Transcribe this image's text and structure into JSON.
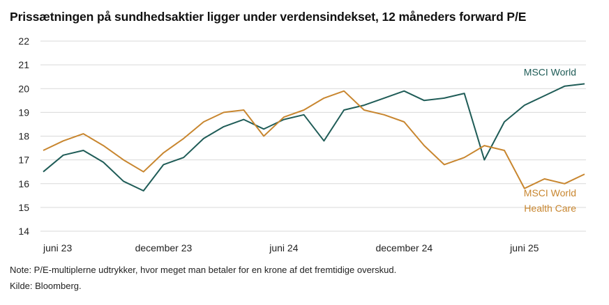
{
  "title": "Prissætningen på sundhedsaktier ligger under verdensindekset, 12 måneders forward P/E",
  "note": "Note: P/E-multiplerne udtrykker, hvor meget man betaler for en krone af det fremtidige overskud.",
  "source": "Kilde: Bloomberg.",
  "colors": {
    "msci_world": "#1f5c57",
    "health_care": "#c8862f",
    "grid": "#d9d9d9"
  },
  "chart_data": {
    "type": "line",
    "title": "Prissætningen på sundhedsaktier ligger under verdensindekset, 12 måneders forward P/E",
    "xlabel": "",
    "ylabel": "",
    "ylim": [
      14,
      22
    ],
    "yticks": [
      14,
      15,
      16,
      17,
      18,
      19,
      20,
      21,
      22
    ],
    "xlim": [
      "2023-06",
      "2025-09"
    ],
    "xticks": [
      {
        "label": "juni 23",
        "x": "2023-06"
      },
      {
        "label": "december 23",
        "x": "2023-12"
      },
      {
        "label": "juni 24",
        "x": "2024-06"
      },
      {
        "label": "december 24",
        "x": "2024-12"
      },
      {
        "label": "juni 25",
        "x": "2025-06"
      }
    ],
    "grid": true,
    "series": [
      {
        "name": "MSCI World",
        "label_lines": [
          "MSCI World"
        ],
        "points": [
          [
            "2023-06",
            16.5
          ],
          [
            "2023-07",
            17.2
          ],
          [
            "2023-08",
            17.4
          ],
          [
            "2023-09",
            16.9
          ],
          [
            "2023-10",
            16.1
          ],
          [
            "2023-11",
            15.7
          ],
          [
            "2023-12",
            16.8
          ],
          [
            "2024-01",
            17.1
          ],
          [
            "2024-02",
            17.9
          ],
          [
            "2024-03",
            18.4
          ],
          [
            "2024-04",
            18.7
          ],
          [
            "2024-05",
            18.3
          ],
          [
            "2024-06",
            18.7
          ],
          [
            "2024-07",
            18.9
          ],
          [
            "2024-08",
            17.8
          ],
          [
            "2024-09",
            19.1
          ],
          [
            "2024-10",
            19.3
          ],
          [
            "2024-11",
            19.6
          ],
          [
            "2024-12",
            19.9
          ],
          [
            "2025-01",
            19.5
          ],
          [
            "2025-02",
            19.6
          ],
          [
            "2025-03",
            19.8
          ],
          [
            "2025-04",
            17.0
          ],
          [
            "2025-05",
            18.6
          ],
          [
            "2025-06",
            19.3
          ],
          [
            "2025-07",
            19.7
          ],
          [
            "2025-08",
            20.1
          ],
          [
            "2025-09",
            20.2
          ]
        ]
      },
      {
        "name": "MSCI World Health Care",
        "label_lines": [
          "MSCI World",
          "Health Care"
        ],
        "points": [
          [
            "2023-06",
            17.4
          ],
          [
            "2023-07",
            17.8
          ],
          [
            "2023-08",
            18.1
          ],
          [
            "2023-09",
            17.6
          ],
          [
            "2023-10",
            17.0
          ],
          [
            "2023-11",
            16.5
          ],
          [
            "2023-12",
            17.3
          ],
          [
            "2024-01",
            17.9
          ],
          [
            "2024-02",
            18.6
          ],
          [
            "2024-03",
            19.0
          ],
          [
            "2024-04",
            19.1
          ],
          [
            "2024-05",
            18.0
          ],
          [
            "2024-06",
            18.8
          ],
          [
            "2024-07",
            19.1
          ],
          [
            "2024-08",
            19.6
          ],
          [
            "2024-09",
            19.9
          ],
          [
            "2024-10",
            19.1
          ],
          [
            "2024-11",
            18.9
          ],
          [
            "2024-12",
            18.6
          ],
          [
            "2025-01",
            17.6
          ],
          [
            "2025-02",
            16.8
          ],
          [
            "2025-03",
            17.1
          ],
          [
            "2025-04",
            17.6
          ],
          [
            "2025-05",
            17.4
          ],
          [
            "2025-06",
            15.8
          ],
          [
            "2025-07",
            16.2
          ],
          [
            "2025-08",
            16.0
          ],
          [
            "2025-09",
            16.4
          ]
        ]
      }
    ]
  }
}
